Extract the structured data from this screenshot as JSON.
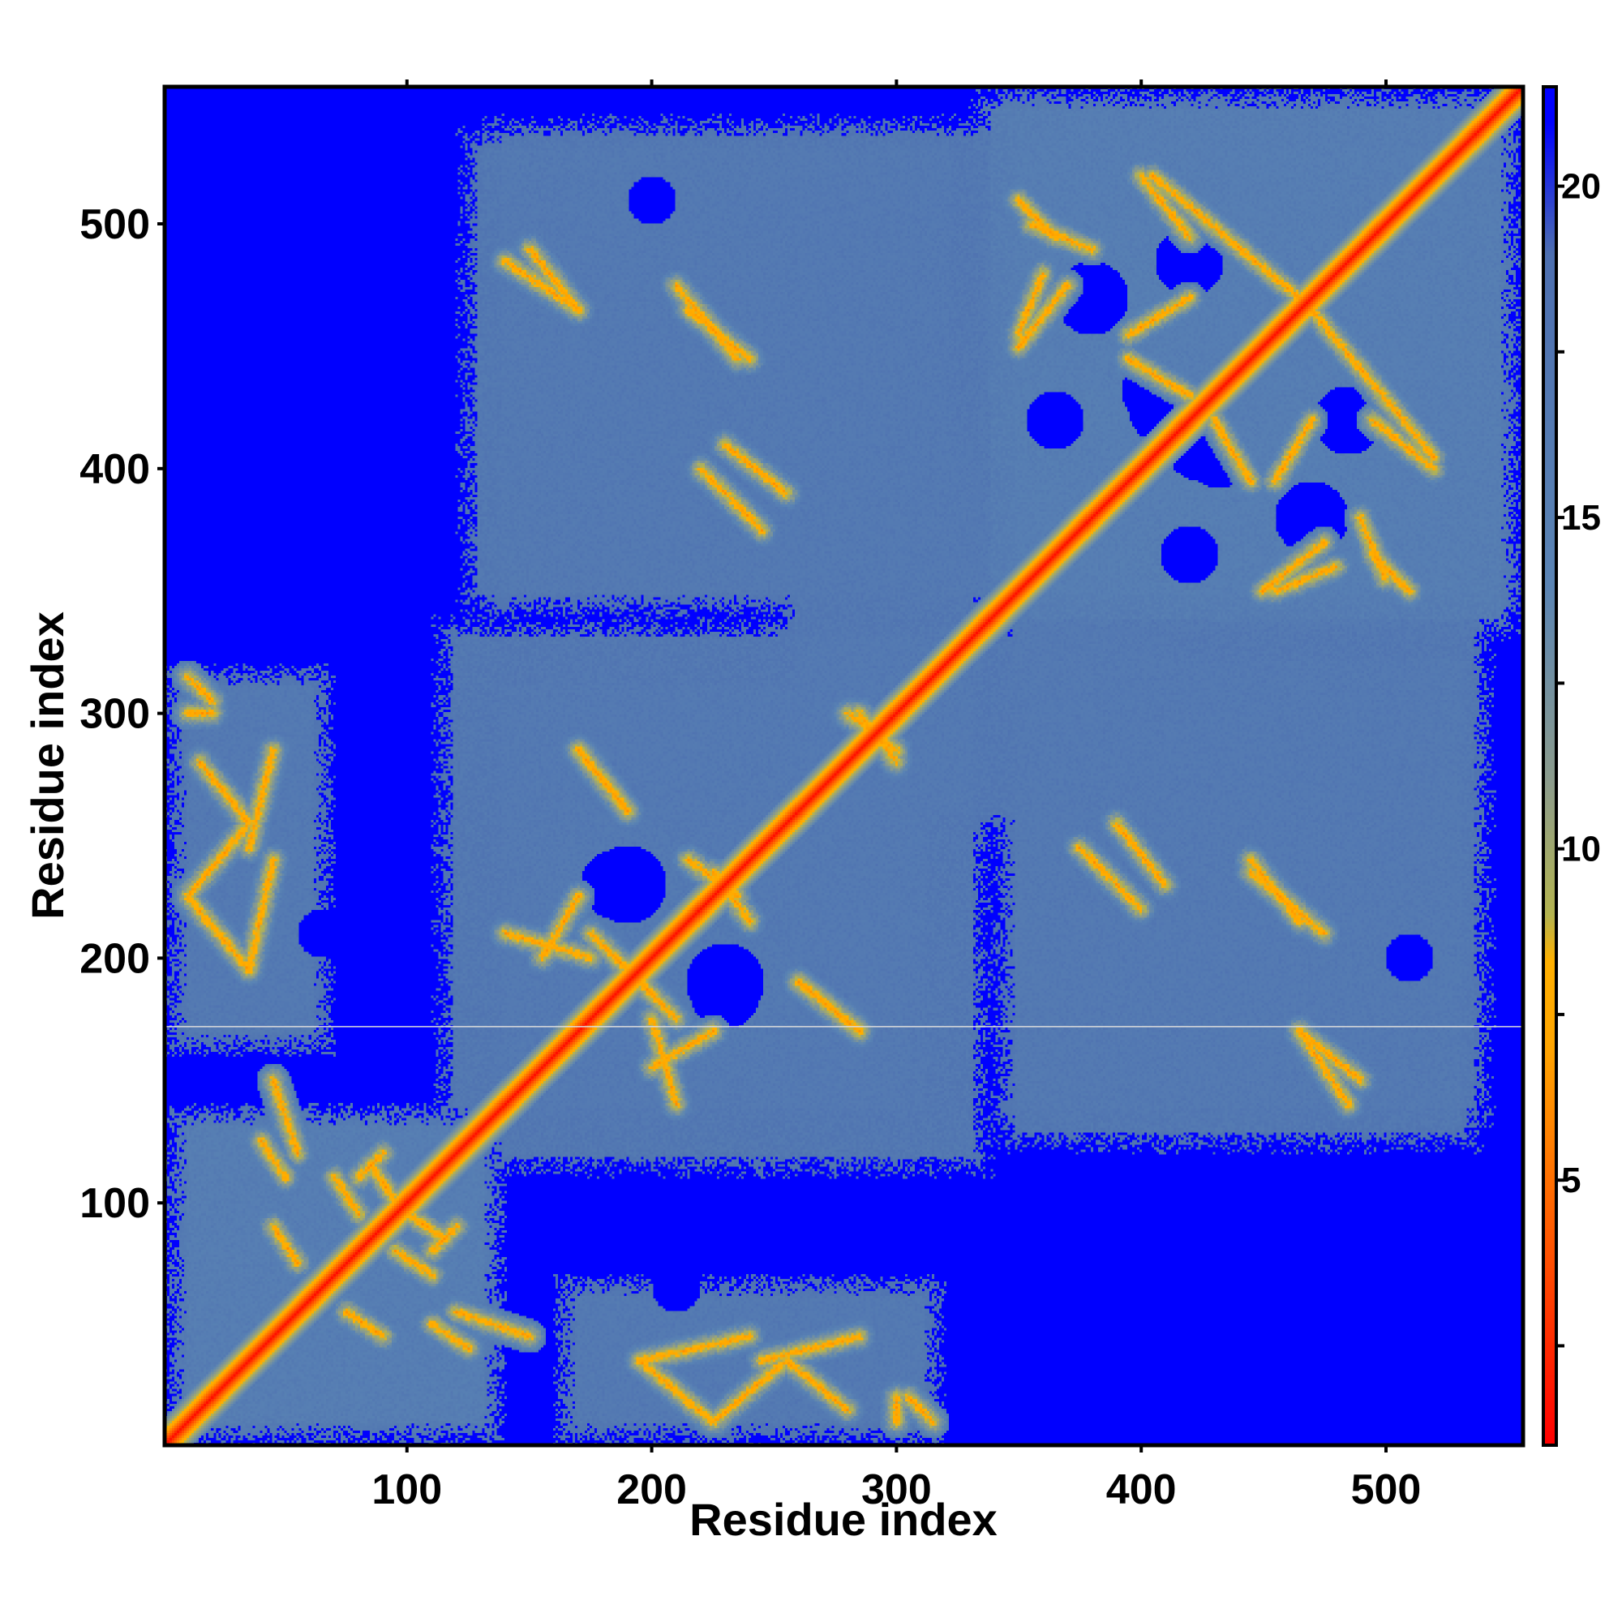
{
  "chart_data": {
    "type": "heatmap",
    "title": "",
    "xlabel": "Residue index",
    "ylabel": "Residue index",
    "x_range": [
      1,
      556
    ],
    "y_range": [
      1,
      556
    ],
    "x_ticks": [
      100,
      200,
      300,
      400,
      500
    ],
    "y_ticks": [
      100,
      200,
      300,
      400,
      500
    ],
    "colorbar": {
      "range": [
        1,
        21.5
      ],
      "ticks": [
        5,
        10,
        15,
        20
      ],
      "stops": [
        {
          "value": 1,
          "color": "#ff0000"
        },
        {
          "value": 4,
          "color": "#ff5500"
        },
        {
          "value": 7,
          "color": "#ffa500"
        },
        {
          "value": 8.3,
          "color": "#ffb000"
        },
        {
          "value": 9,
          "color": "#b4b450"
        },
        {
          "value": 11,
          "color": "#8c9c8c"
        },
        {
          "value": 14,
          "color": "#5a84b4"
        },
        {
          "value": 19,
          "color": "#4d6fb0"
        },
        {
          "value": 21,
          "color": "#0000ff"
        }
      ]
    },
    "background_value": 21.5,
    "diagonal_value": 1.5,
    "separator_line_y": 172,
    "domain_regions": [
      {
        "x": [
          1,
          140
        ],
        "y": [
          1,
          140
        ],
        "level": 15
      },
      {
        "x": [
          1,
          70
        ],
        "y": [
          160,
          320
        ],
        "level": 16
      },
      {
        "x": [
          160,
          320
        ],
        "y": [
          1,
          70
        ],
        "level": 16
      },
      {
        "x": [
          110,
          320
        ],
        "y": [
          130,
          340
        ],
        "level": 16
      },
      {
        "x": [
          250,
          420
        ],
        "y": [
          250,
          340
        ],
        "level": 16
      },
      {
        "x": [
          130,
          400
        ],
        "y": [
          340,
          545
        ],
        "level": 16
      },
      {
        "x": [
          340,
          556
        ],
        "y": [
          330,
          556
        ],
        "level": 15
      },
      {
        "x": [
          340,
          540
        ],
        "y": [
          120,
          330
        ],
        "level": 16
      }
    ],
    "contact_bands": [
      {
        "from": [
          10,
          300
        ],
        "to": [
          20,
          300
        ]
      },
      {
        "from": [
          15,
          280
        ],
        "to": [
          35,
          255
        ]
      },
      {
        "from": [
          35,
          255
        ],
        "to": [
          10,
          225
        ]
      },
      {
        "from": [
          10,
          225
        ],
        "to": [
          35,
          195
        ]
      },
      {
        "from": [
          150,
          490
        ],
        "to": [
          170,
          465
        ]
      },
      {
        "from": [
          210,
          475
        ],
        "to": [
          235,
          445
        ]
      },
      {
        "from": [
          220,
          400
        ],
        "to": [
          245,
          375
        ]
      },
      {
        "from": [
          170,
          285
        ],
        "to": [
          190,
          260
        ]
      },
      {
        "from": [
          155,
          200
        ],
        "to": [
          170,
          225
        ]
      },
      {
        "from": [
          185,
          200
        ],
        "to": [
          210,
          175
        ]
      },
      {
        "from": [
          200,
          175
        ],
        "to": [
          210,
          140
        ]
      },
      {
        "from": [
          225,
          235
        ],
        "to": [
          240,
          215
        ]
      },
      {
        "from": [
          260,
          190
        ],
        "to": [
          285,
          170
        ]
      },
      {
        "from": [
          280,
          300
        ],
        "to": [
          300,
          285
        ]
      },
      {
        "from": [
          350,
          510
        ],
        "to": [
          365,
          495
        ]
      },
      {
        "from": [
          360,
          480
        ],
        "to": [
          350,
          455
        ]
      },
      {
        "from": [
          400,
          520
        ],
        "to": [
          420,
          495
        ]
      },
      {
        "from": [
          395,
          455
        ],
        "to": [
          420,
          470
        ]
      },
      {
        "from": [
          430,
          420
        ],
        "to": [
          445,
          395
        ]
      },
      {
        "from": [
          470,
          465
        ],
        "to": [
          520,
          405
        ]
      },
      {
        "from": [
          490,
          380
        ],
        "to": [
          500,
          355
        ]
      },
      {
        "from": [
          450,
          350
        ],
        "to": [
          475,
          370
        ]
      },
      {
        "from": [
          390,
          255
        ],
        "to": [
          410,
          230
        ]
      },
      {
        "from": [
          445,
          240
        ],
        "to": [
          465,
          215
        ]
      },
      {
        "from": [
          465,
          170
        ],
        "to": [
          485,
          140
        ]
      },
      {
        "from": [
          100,
          95
        ],
        "to": [
          115,
          85
        ]
      },
      {
        "from": [
          95,
          80
        ],
        "to": [
          110,
          70
        ]
      },
      {
        "from": [
          90,
          120
        ],
        "to": [
          80,
          110
        ]
      },
      {
        "from": [
          120,
          55
        ],
        "to": [
          150,
          45
        ]
      },
      {
        "from": [
          195,
          35
        ],
        "to": [
          240,
          45
        ]
      },
      {
        "from": [
          245,
          35
        ],
        "to": [
          285,
          45
        ]
      },
      {
        "from": [
          305,
          20
        ],
        "to": [
          315,
          10
        ]
      },
      {
        "from": [
          40,
          125
        ],
        "to": [
          50,
          110
        ]
      },
      {
        "from": [
          45,
          90
        ],
        "to": [
          55,
          75
        ]
      }
    ],
    "hollow_regions": [
      {
        "center": [
          190,
          230
        ],
        "radius": 16
      },
      {
        "center": [
          230,
          185
        ],
        "radius": 14
      },
      {
        "center": [
          410,
          425
        ],
        "radius": 15
      },
      {
        "center": [
          432,
          405
        ],
        "radius": 13
      },
      {
        "center": [
          485,
          420
        ],
        "radius": 14
      },
      {
        "center": [
          470,
          380
        ],
        "radius": 15
      },
      {
        "center": [
          365,
          420
        ],
        "radius": 12
      },
      {
        "center": [
          200,
          510
        ],
        "radius": 10
      },
      {
        "center": [
          65,
          210
        ],
        "radius": 10
      }
    ]
  }
}
